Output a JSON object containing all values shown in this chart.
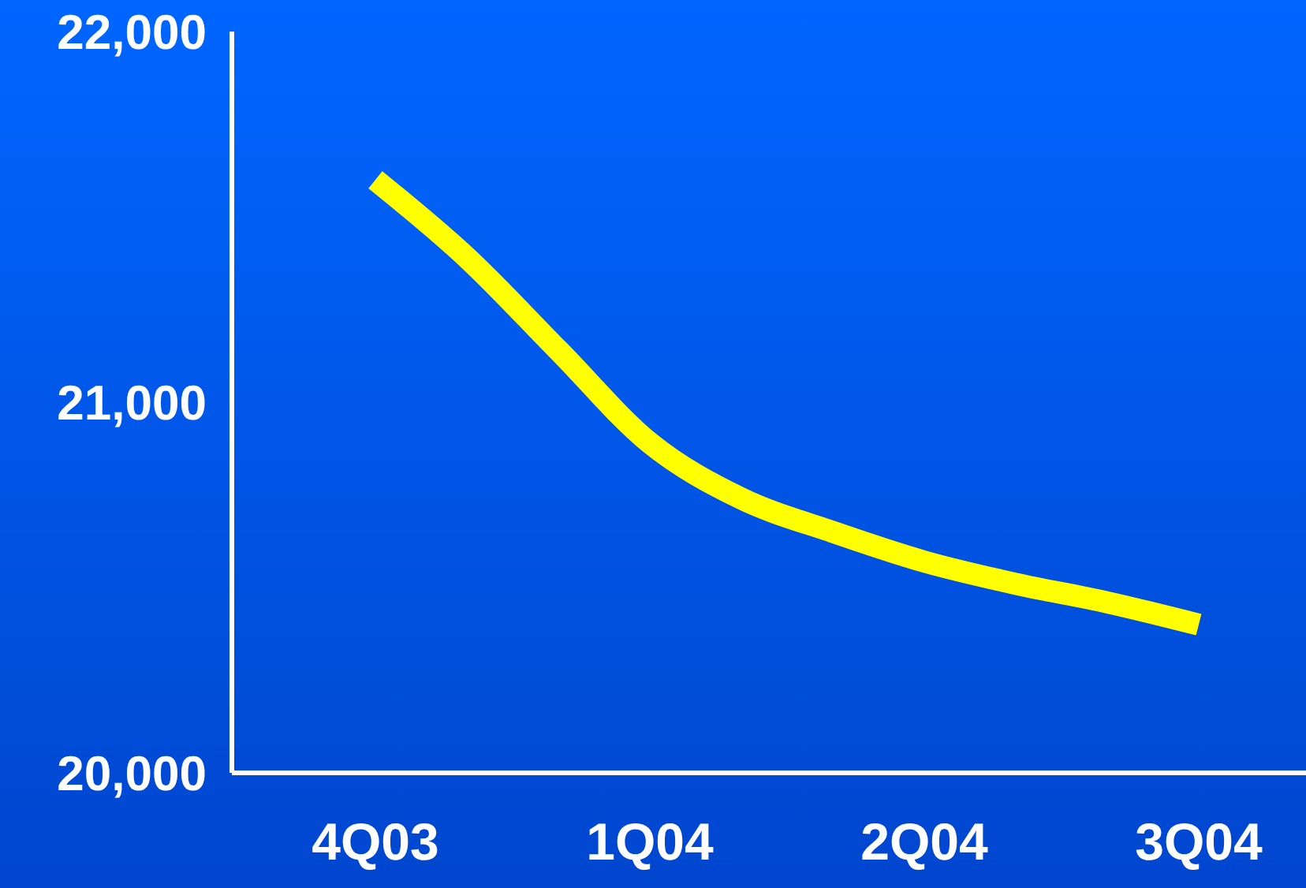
{
  "chart_data": {
    "type": "line",
    "categories": [
      "4Q03",
      null,
      null,
      "1Q04",
      null,
      null,
      "2Q04",
      null,
      null,
      "3Q04"
    ],
    "ylim": [
      20000,
      22000
    ],
    "yticks": [
      {
        "value": 20000,
        "label": "20,000"
      },
      {
        "value": 21000,
        "label": "21,000"
      },
      {
        "value": 22000,
        "label": "22,000"
      }
    ],
    "series": [
      {
        "color": "#ffff00",
        "values": [
          21600,
          21390,
          21140,
          20890,
          20740,
          20650,
          20570,
          20510,
          20460,
          20400
        ]
      }
    ]
  }
}
